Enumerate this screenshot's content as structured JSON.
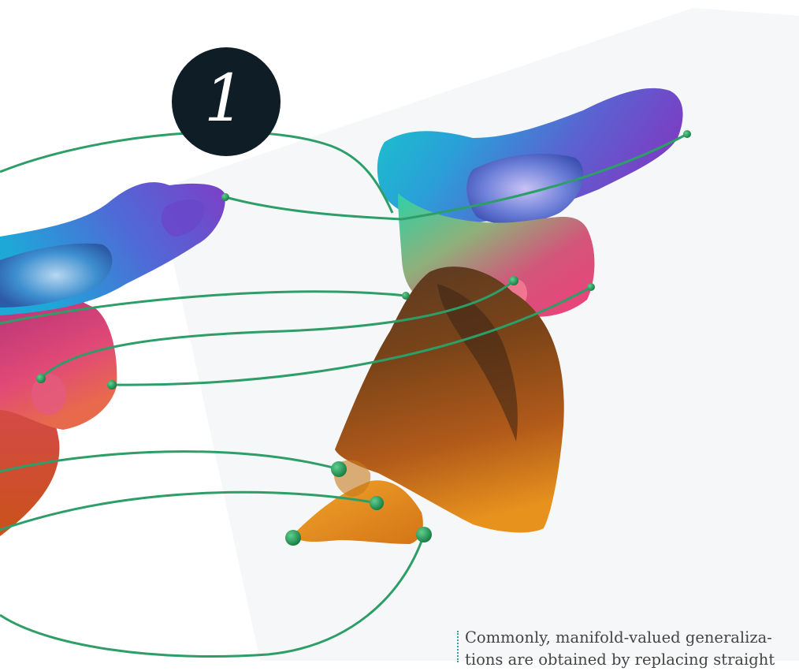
{
  "badge": {
    "number": "1"
  },
  "caption": {
    "line1": "Commonly, manifold-valued generaliza-",
    "line2": "tions are obtained by replacing straight"
  },
  "colors": {
    "badge_bg": "#0f1d26",
    "geodesic_green": "#2e9e68",
    "landmark_green": "#1f8a4c",
    "caption_rule": "#2aa39a"
  },
  "icons": [
    "landmark-point-icon"
  ]
}
